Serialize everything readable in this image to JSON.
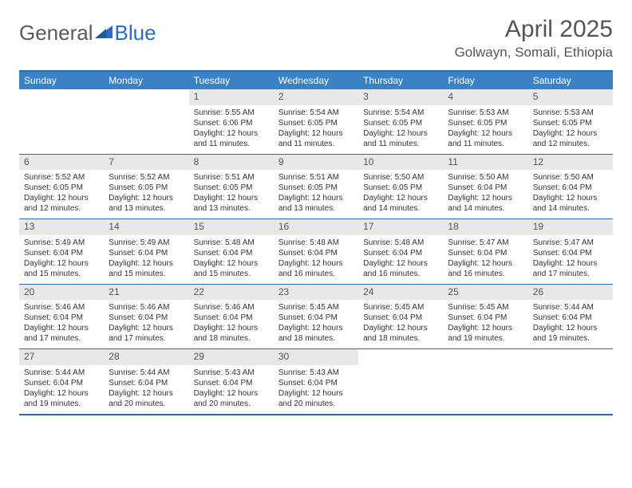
{
  "brand": {
    "part1": "General",
    "part2": "Blue"
  },
  "title": "April 2025",
  "location": "Golwayn, Somali, Ethiopia",
  "colors": {
    "header_bar": "#3b82c4",
    "border": "#2a6db8",
    "daynum_bg": "#e8e8e8",
    "text": "#333333",
    "title_text": "#555555"
  },
  "day_names": [
    "Sunday",
    "Monday",
    "Tuesday",
    "Wednesday",
    "Thursday",
    "Friday",
    "Saturday"
  ],
  "first_weekday_index": 2,
  "days": [
    {
      "n": 1,
      "sunrise": "5:55 AM",
      "sunset": "6:06 PM",
      "daylight": "12 hours and 11 minutes."
    },
    {
      "n": 2,
      "sunrise": "5:54 AM",
      "sunset": "6:05 PM",
      "daylight": "12 hours and 11 minutes."
    },
    {
      "n": 3,
      "sunrise": "5:54 AM",
      "sunset": "6:05 PM",
      "daylight": "12 hours and 11 minutes."
    },
    {
      "n": 4,
      "sunrise": "5:53 AM",
      "sunset": "6:05 PM",
      "daylight": "12 hours and 11 minutes."
    },
    {
      "n": 5,
      "sunrise": "5:53 AM",
      "sunset": "6:05 PM",
      "daylight": "12 hours and 12 minutes."
    },
    {
      "n": 6,
      "sunrise": "5:52 AM",
      "sunset": "6:05 PM",
      "daylight": "12 hours and 12 minutes."
    },
    {
      "n": 7,
      "sunrise": "5:52 AM",
      "sunset": "6:05 PM",
      "daylight": "12 hours and 13 minutes."
    },
    {
      "n": 8,
      "sunrise": "5:51 AM",
      "sunset": "6:05 PM",
      "daylight": "12 hours and 13 minutes."
    },
    {
      "n": 9,
      "sunrise": "5:51 AM",
      "sunset": "6:05 PM",
      "daylight": "12 hours and 13 minutes."
    },
    {
      "n": 10,
      "sunrise": "5:50 AM",
      "sunset": "6:05 PM",
      "daylight": "12 hours and 14 minutes."
    },
    {
      "n": 11,
      "sunrise": "5:50 AM",
      "sunset": "6:04 PM",
      "daylight": "12 hours and 14 minutes."
    },
    {
      "n": 12,
      "sunrise": "5:50 AM",
      "sunset": "6:04 PM",
      "daylight": "12 hours and 14 minutes."
    },
    {
      "n": 13,
      "sunrise": "5:49 AM",
      "sunset": "6:04 PM",
      "daylight": "12 hours and 15 minutes."
    },
    {
      "n": 14,
      "sunrise": "5:49 AM",
      "sunset": "6:04 PM",
      "daylight": "12 hours and 15 minutes."
    },
    {
      "n": 15,
      "sunrise": "5:48 AM",
      "sunset": "6:04 PM",
      "daylight": "12 hours and 15 minutes."
    },
    {
      "n": 16,
      "sunrise": "5:48 AM",
      "sunset": "6:04 PM",
      "daylight": "12 hours and 16 minutes."
    },
    {
      "n": 17,
      "sunrise": "5:48 AM",
      "sunset": "6:04 PM",
      "daylight": "12 hours and 16 minutes."
    },
    {
      "n": 18,
      "sunrise": "5:47 AM",
      "sunset": "6:04 PM",
      "daylight": "12 hours and 16 minutes."
    },
    {
      "n": 19,
      "sunrise": "5:47 AM",
      "sunset": "6:04 PM",
      "daylight": "12 hours and 17 minutes."
    },
    {
      "n": 20,
      "sunrise": "5:46 AM",
      "sunset": "6:04 PM",
      "daylight": "12 hours and 17 minutes."
    },
    {
      "n": 21,
      "sunrise": "5:46 AM",
      "sunset": "6:04 PM",
      "daylight": "12 hours and 17 minutes."
    },
    {
      "n": 22,
      "sunrise": "5:46 AM",
      "sunset": "6:04 PM",
      "daylight": "12 hours and 18 minutes."
    },
    {
      "n": 23,
      "sunrise": "5:45 AM",
      "sunset": "6:04 PM",
      "daylight": "12 hours and 18 minutes."
    },
    {
      "n": 24,
      "sunrise": "5:45 AM",
      "sunset": "6:04 PM",
      "daylight": "12 hours and 18 minutes."
    },
    {
      "n": 25,
      "sunrise": "5:45 AM",
      "sunset": "6:04 PM",
      "daylight": "12 hours and 19 minutes."
    },
    {
      "n": 26,
      "sunrise": "5:44 AM",
      "sunset": "6:04 PM",
      "daylight": "12 hours and 19 minutes."
    },
    {
      "n": 27,
      "sunrise": "5:44 AM",
      "sunset": "6:04 PM",
      "daylight": "12 hours and 19 minutes."
    },
    {
      "n": 28,
      "sunrise": "5:44 AM",
      "sunset": "6:04 PM",
      "daylight": "12 hours and 20 minutes."
    },
    {
      "n": 29,
      "sunrise": "5:43 AM",
      "sunset": "6:04 PM",
      "daylight": "12 hours and 20 minutes."
    },
    {
      "n": 30,
      "sunrise": "5:43 AM",
      "sunset": "6:04 PM",
      "daylight": "12 hours and 20 minutes."
    }
  ],
  "labels": {
    "sunrise": "Sunrise:",
    "sunset": "Sunset:",
    "daylight": "Daylight:"
  }
}
